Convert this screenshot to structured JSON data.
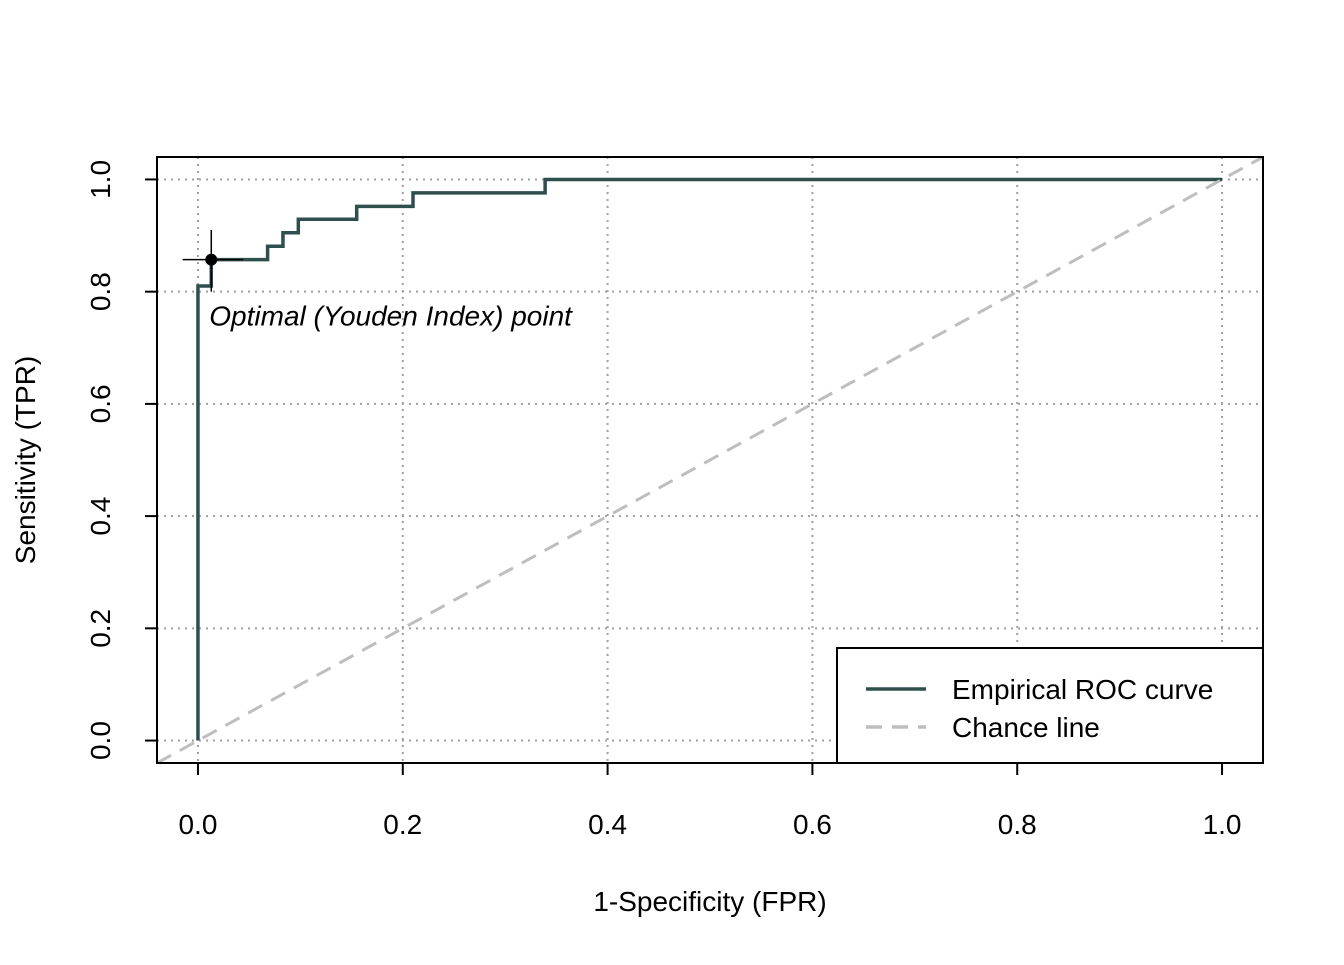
{
  "chart_data": {
    "type": "line",
    "xlabel": "1-Specificity (FPR)",
    "ylabel": "Sensitivity (TPR)",
    "xlim": [
      -0.04,
      1.04
    ],
    "ylim": [
      -0.04,
      1.04
    ],
    "xticks": [
      {
        "value": 0,
        "label": "0.0"
      },
      0.2,
      0.4,
      0.6,
      0.8,
      {
        "value": 1,
        "label": "1.0"
      }
    ],
    "yticks": [
      {
        "value": 0,
        "label": "0.0"
      },
      0.2,
      0.4,
      0.6,
      0.8,
      {
        "value": 1,
        "label": "1.0"
      }
    ],
    "grid": true,
    "legend": "bottomright",
    "series": [
      {
        "name": "Empirical ROC curve",
        "color": "#2f4f4f",
        "dash": false,
        "x": [
          0,
          0,
          0.013,
          0.013,
          0.068,
          0.068,
          0.083,
          0.083,
          0.098,
          0.098,
          0.155,
          0.155,
          0.21,
          0.21,
          0.339,
          0.339,
          1
        ],
        "values": [
          0,
          0.81,
          0.81,
          0.857,
          0.857,
          0.881,
          0.881,
          0.905,
          0.905,
          0.929,
          0.929,
          0.952,
          0.952,
          0.976,
          0.976,
          1,
          1
        ]
      },
      {
        "name": "Chance line",
        "color": "#bebebe",
        "dash": true,
        "x": [
          -0.04,
          1.04
        ],
        "values": [
          -0.04,
          1.04
        ]
      }
    ],
    "optimal_point": {
      "x": 0.013,
      "y": 0.857,
      "x_ci": [
        -0.015,
        0.044
      ],
      "y_ci": [
        0.8,
        0.91
      ],
      "annotation": "Optimal (Youden Index) point"
    }
  }
}
